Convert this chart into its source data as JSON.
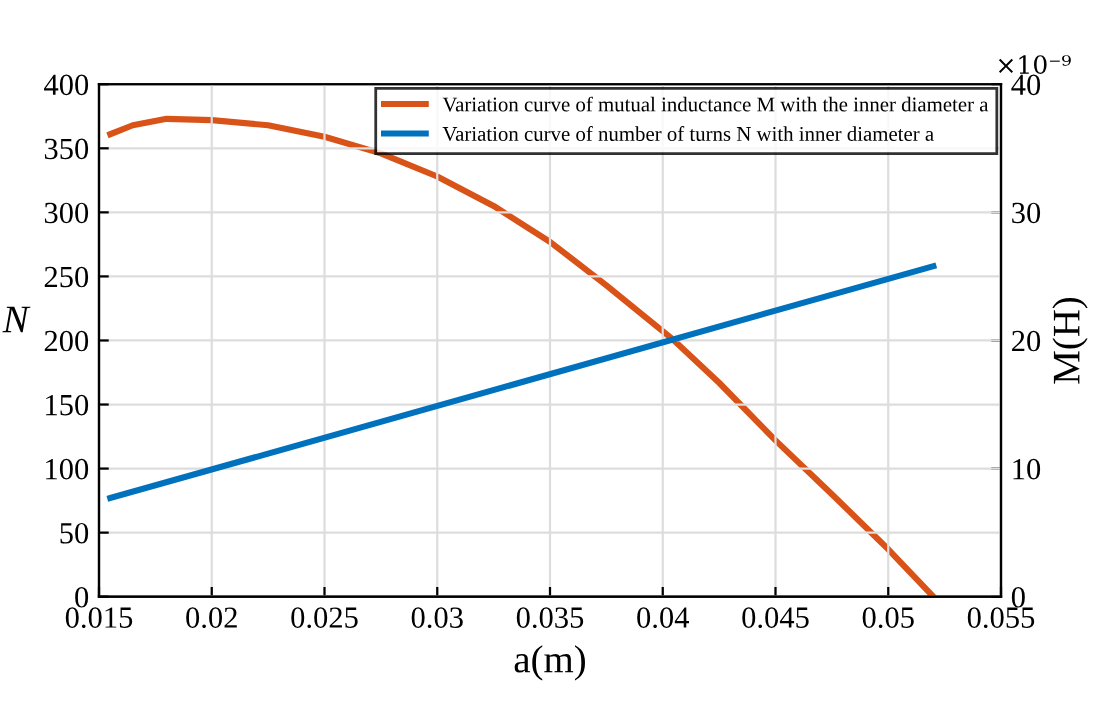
{
  "chart_data": {
    "type": "line",
    "xlabel": "a(m)",
    "ylabel": "N",
    "y2label": "M(H)",
    "annotations": [
      "×10⁻⁹"
    ],
    "xlim": [
      0.015,
      0.055
    ],
    "xticks": [
      {
        "value": 0.015,
        "label": "0.015"
      },
      {
        "value": 0.02,
        "label": "0.02"
      },
      {
        "value": 0.025,
        "label": "0.025"
      },
      {
        "value": 0.03,
        "label": "0.03"
      },
      {
        "value": 0.035,
        "label": "0.035"
      },
      {
        "value": 0.04,
        "label": "0.04"
      },
      {
        "value": 0.045,
        "label": "0.045"
      },
      {
        "value": 0.05,
        "label": "0.05"
      },
      {
        "value": 0.055,
        "label": "0.055"
      }
    ],
    "ylim": [
      0,
      400
    ],
    "yticks": [
      0,
      50,
      100,
      150,
      200,
      250,
      300,
      350,
      400
    ],
    "y2lim": [
      0,
      40
    ],
    "y2ticks": [
      0,
      10,
      20,
      30,
      40
    ],
    "grid": true,
    "legend": "top right",
    "marker": "none",
    "line_style": "solid",
    "series": [
      {
        "name": "Variation curve of mutual inductance M with the inner diameter a",
        "color": "#d95319",
        "axis": "y2",
        "x": [
          0.0155,
          0.0165,
          0.018,
          0.02,
          0.0225,
          0.025,
          0.0275,
          0.03,
          0.0325,
          0.035,
          0.0375,
          0.0405,
          0.0425,
          0.045,
          0.0475,
          0.05,
          0.052
        ],
        "values": [
          36.1,
          36.8,
          37.3,
          37.2,
          36.8,
          35.9,
          34.6,
          32.8,
          30.5,
          27.7,
          24.3,
          20.0,
          16.7,
          12.2,
          8.0,
          3.7,
          0
        ]
      },
      {
        "name": "Variation curve of number of turns N with inner diameter a",
        "color": "#0072bd",
        "x": [
          0.0155,
          0.052
        ],
        "values": [
          77,
          258
        ]
      }
    ]
  }
}
